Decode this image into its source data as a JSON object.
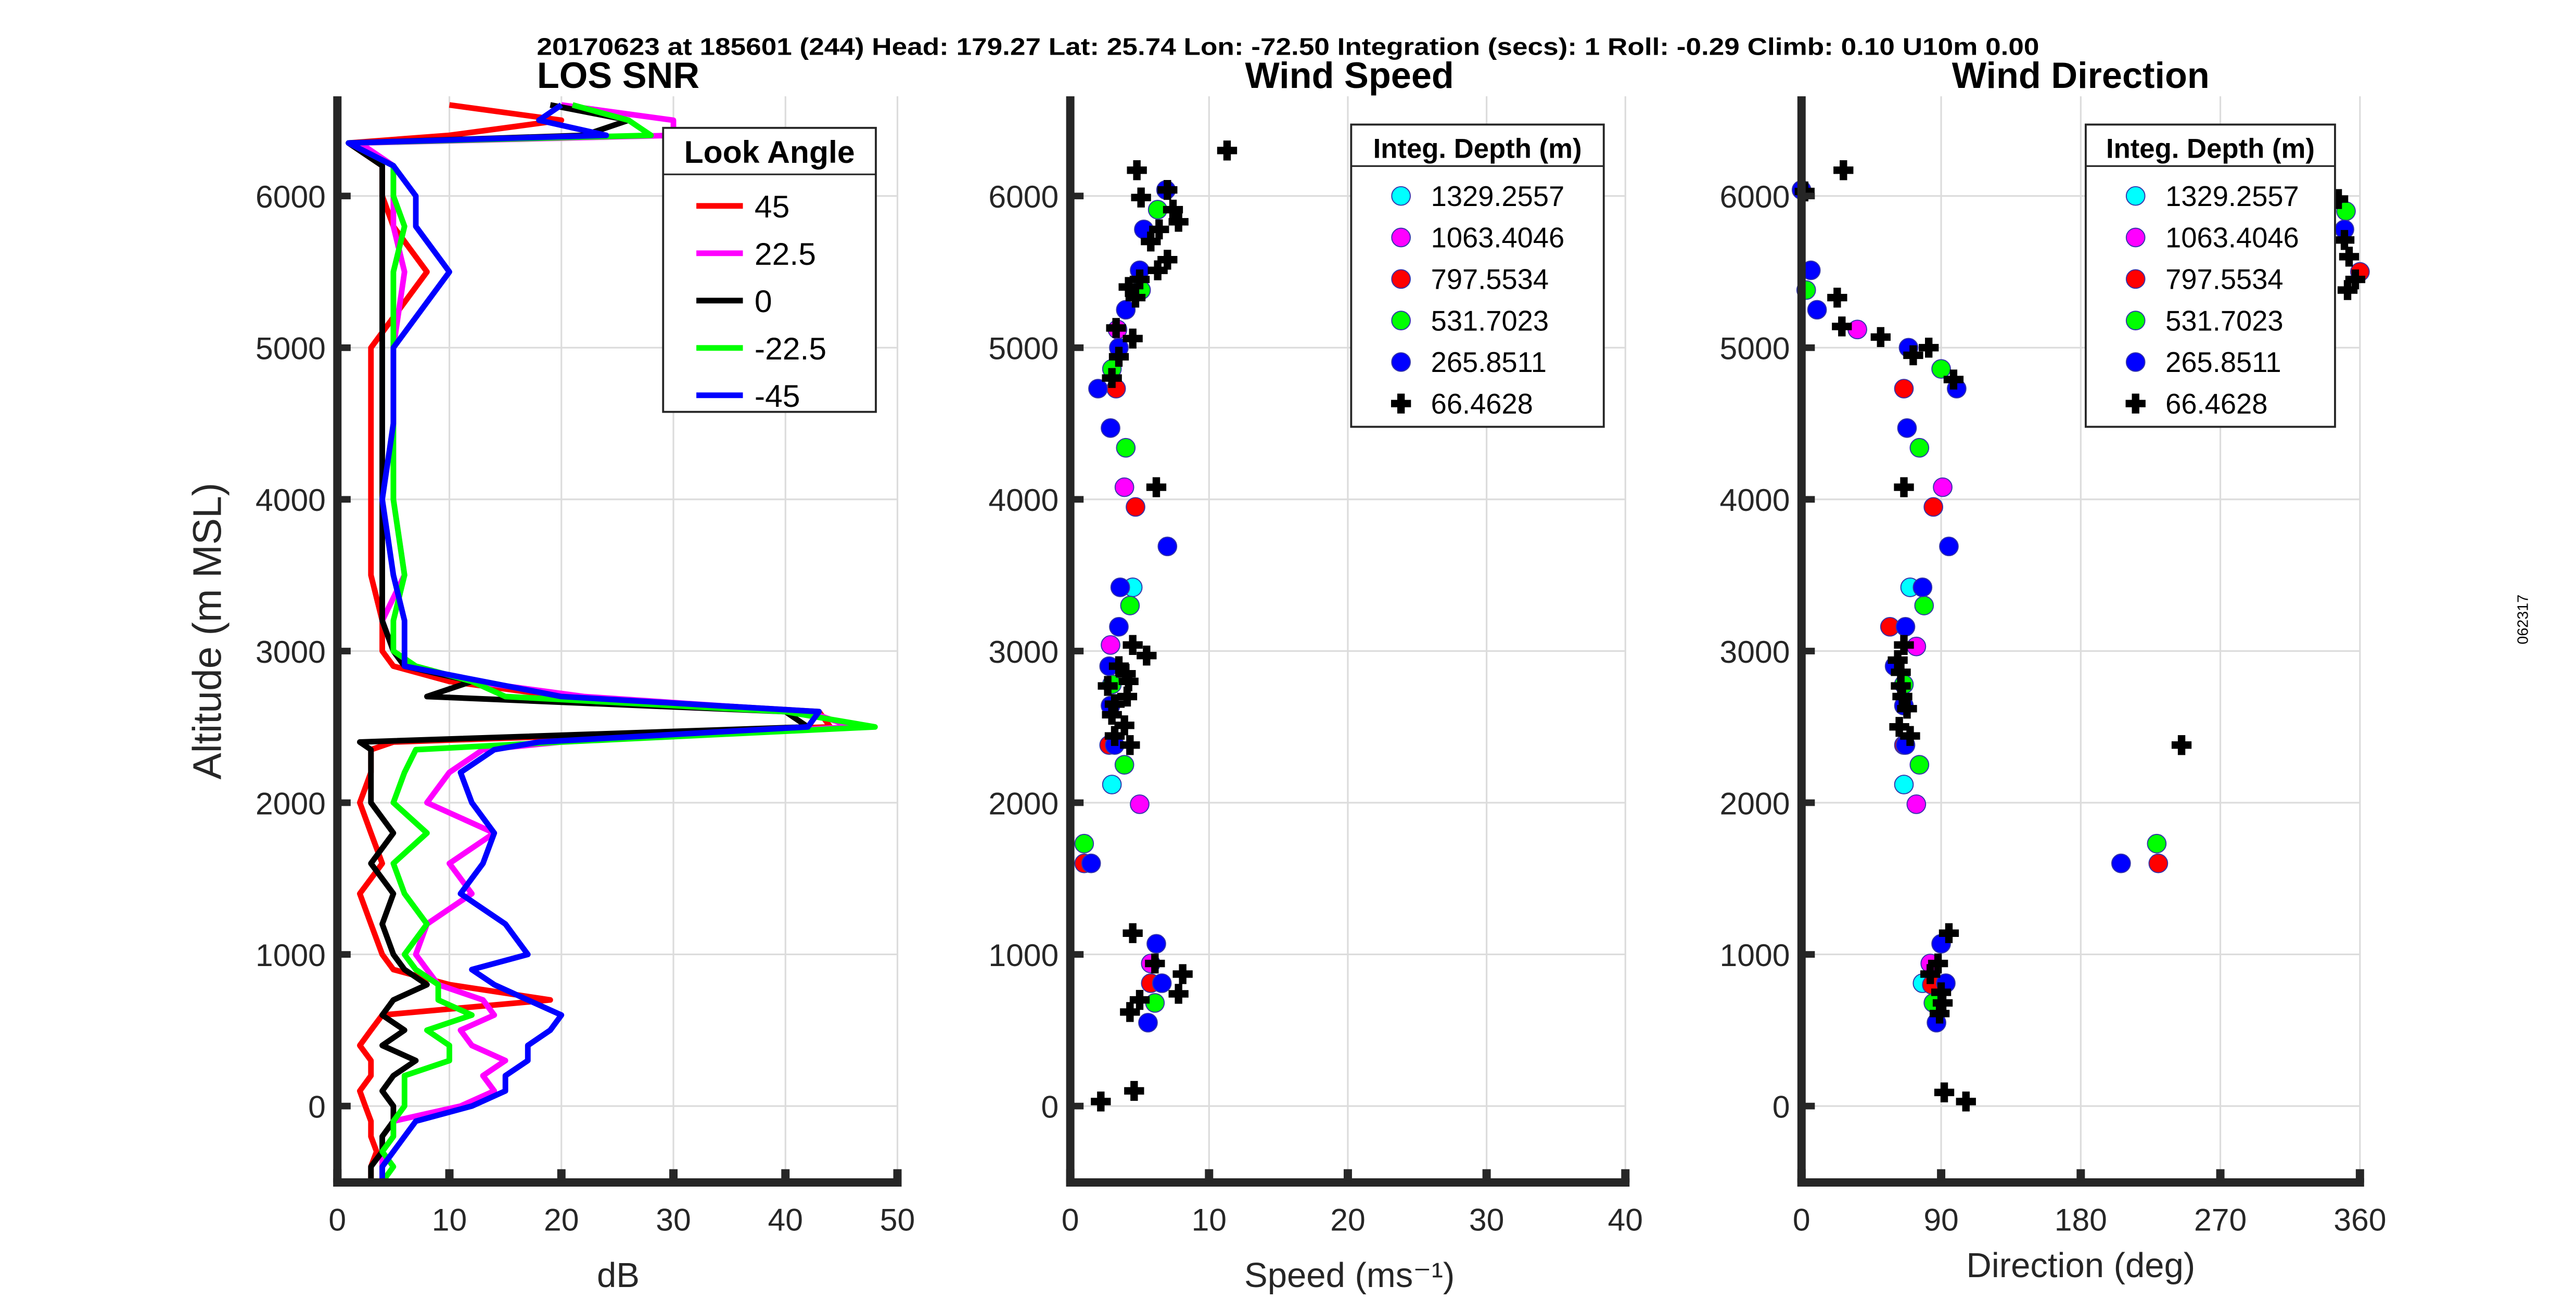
{
  "header": {
    "title": "20170623 at 185601 (244)  Head: 179.27  Lat: 25.74  Lon: -72.50  Integration (secs): 1  Roll: -0.29  Climb: 0.10  U10m 0.00"
  },
  "side_label": "062317",
  "chart_data": [
    {
      "type": "line",
      "title": "LOS SNR",
      "xlabel": "dB",
      "ylabel": "Altitude (m MSL)",
      "xlim": [
        0,
        50
      ],
      "ylim": [
        -500,
        6600
      ],
      "xticks": [
        0,
        10,
        20,
        30,
        40,
        50
      ],
      "yticks": [
        0,
        1000,
        2000,
        3000,
        4000,
        5000,
        6000
      ],
      "grid": true,
      "legend": {
        "title": "Look Angle",
        "placement": "top-right"
      },
      "altitudes": [
        -500,
        -400,
        -300,
        -200,
        -100,
        0,
        100,
        200,
        300,
        400,
        500,
        600,
        700,
        800,
        900,
        1000,
        1200,
        1400,
        1600,
        1800,
        2000,
        2200,
        2350,
        2400,
        2500,
        2600,
        2700,
        2800,
        2900,
        3000,
        3200,
        3500,
        4000,
        4500,
        5000,
        5500,
        5800,
        6000,
        6200,
        6350,
        6400,
        6500,
        6600
      ],
      "series": [
        {
          "name": "45",
          "color": "#ff0000",
          "values": [
            3,
            3,
            3.5,
            3,
            3,
            2.5,
            2,
            3,
            3,
            2,
            3,
            4,
            19,
            10,
            5,
            4,
            3,
            2,
            4,
            3,
            2,
            3,
            3,
            5,
            44,
            43,
            20,
            10,
            5,
            4,
            4,
            3,
            3,
            3,
            3,
            8,
            5,
            4,
            4,
            1,
            10,
            20,
            10
          ]
        },
        {
          "name": "22.5",
          "color": "#ff00ff",
          "values": [
            4,
            4,
            4,
            5,
            5,
            11,
            14,
            13,
            15,
            12,
            11,
            14,
            13,
            9,
            8,
            7,
            8,
            12,
            10,
            14,
            8,
            10,
            13,
            20,
            46,
            42,
            22,
            12,
            6,
            5,
            4,
            6,
            5,
            5,
            5,
            6,
            5,
            5,
            5,
            2,
            30,
            30,
            20
          ]
        },
        {
          "name": "0",
          "color": "#000000",
          "values": [
            3,
            3,
            4,
            4,
            5,
            5,
            4,
            5,
            7,
            4,
            6,
            4,
            5,
            8,
            6,
            5,
            4,
            5,
            3,
            5,
            3,
            3,
            3,
            2,
            42,
            40,
            8,
            12,
            6,
            5,
            4,
            4,
            4,
            4,
            4,
            4,
            4,
            4,
            4,
            1,
            22,
            26,
            19
          ]
        },
        {
          "name": "-22.5",
          "color": "#00ff00",
          "values": [
            4,
            5,
            4,
            5,
            5,
            6,
            6,
            6,
            10,
            10,
            8,
            12,
            9,
            9,
            7,
            6,
            8,
            6,
            5,
            8,
            5,
            6,
            7,
            20,
            48,
            40,
            15,
            12,
            7,
            5,
            5,
            6,
            5,
            5,
            5,
            5,
            6,
            5,
            5,
            1,
            28,
            26,
            21
          ]
        },
        {
          "name": "-45",
          "color": "#0000ff",
          "values": [
            4,
            4,
            5,
            6,
            7,
            12,
            15,
            15,
            17,
            17,
            19,
            20,
            17,
            14,
            12,
            17,
            15,
            11,
            13,
            14,
            12,
            11,
            14,
            18,
            42,
            43,
            20,
            13,
            6,
            6,
            6,
            5,
            4,
            5,
            5,
            10,
            7,
            7,
            5,
            1,
            24,
            18,
            20
          ]
        }
      ]
    },
    {
      "type": "scatter",
      "title": "Wind Speed",
      "xlabel": "Speed (ms⁻¹)",
      "xlim": [
        0,
        40
      ],
      "ylim": [
        -500,
        6600
      ],
      "xticks": [
        0,
        10,
        20,
        30,
        40
      ],
      "yticks": [
        0,
        1000,
        2000,
        3000,
        4000,
        5000,
        6000
      ],
      "grid": true,
      "legend": {
        "title": "Integ. Depth (m)",
        "placement": "top-right"
      },
      "series": [
        {
          "name": "1329.2557",
          "color": "#00ffff",
          "marker": "circle",
          "points": [
            [
              4.5,
              3420
            ],
            [
              3.0,
              2120
            ]
          ]
        },
        {
          "name": "1063.4046",
          "color": "#ff00ff",
          "marker": "circle",
          "points": [
            [
              3.4,
              5120
            ],
            [
              3.9,
              4080
            ],
            [
              2.9,
              3040
            ],
            [
              5.0,
              1990
            ],
            [
              5.8,
              940
            ]
          ]
        },
        {
          "name": "797.5534",
          "color": "#ff0000",
          "marker": "circle",
          "points": [
            [
              3.3,
              4730
            ],
            [
              4.7,
              3950
            ],
            [
              2.8,
              2380
            ],
            [
              1.0,
              1600
            ],
            [
              5.8,
              810
            ]
          ]
        },
        {
          "name": "531.7023",
          "color": "#00ff00",
          "marker": "circle",
          "points": [
            [
              6.3,
              5910
            ],
            [
              5.1,
              5380
            ],
            [
              3.0,
              4860
            ],
            [
              4.0,
              4340
            ],
            [
              4.3,
              3300
            ],
            [
              3.0,
              2780
            ],
            [
              3.9,
              2250
            ],
            [
              1.0,
              1730
            ],
            [
              6.1,
              680
            ]
          ]
        },
        {
          "name": "265.8511",
          "color": "#0000ff",
          "marker": "circle",
          "points": [
            [
              6.9,
              6040
            ],
            [
              5.3,
              5780
            ],
            [
              5.0,
              5510
            ],
            [
              4.0,
              5250
            ],
            [
              3.5,
              5000
            ],
            [
              2.0,
              4730
            ],
            [
              2.9,
              4470
            ],
            [
              7.0,
              3690
            ],
            [
              3.6,
              3420
            ],
            [
              3.5,
              3160
            ],
            [
              2.8,
              2900
            ],
            [
              2.9,
              2640
            ],
            [
              3.2,
              2380
            ],
            [
              1.5,
              1600
            ],
            [
              6.2,
              1070
            ],
            [
              6.6,
              810
            ],
            [
              5.6,
              550
            ]
          ]
        },
        {
          "name": "66.4628",
          "color": "#000000",
          "marker": "plus",
          "points": [
            [
              4.8,
              6170
            ],
            [
              11.3,
              6300
            ],
            [
              5.1,
              5990
            ],
            [
              7.0,
              6040
            ],
            [
              7.4,
              5910
            ],
            [
              7.8,
              5830
            ],
            [
              6.4,
              5780
            ],
            [
              5.8,
              5700
            ],
            [
              7.0,
              5580
            ],
            [
              6.3,
              5510
            ],
            [
              5.0,
              5450
            ],
            [
              4.2,
              5400
            ],
            [
              4.7,
              5330
            ],
            [
              3.3,
              5130
            ],
            [
              4.5,
              5060
            ],
            [
              3.5,
              4940
            ],
            [
              3.0,
              4800
            ],
            [
              6.2,
              4080
            ],
            [
              4.5,
              3040
            ],
            [
              5.5,
              2970
            ],
            [
              3.5,
              2900
            ],
            [
              4.0,
              2850
            ],
            [
              4.2,
              2800
            ],
            [
              2.7,
              2770
            ],
            [
              4.1,
              2700
            ],
            [
              3.2,
              2650
            ],
            [
              3.0,
              2580
            ],
            [
              3.9,
              2510
            ],
            [
              3.2,
              2440
            ],
            [
              4.3,
              2380
            ],
            [
              4.5,
              1140
            ],
            [
              6.1,
              940
            ],
            [
              8.1,
              870
            ],
            [
              5.0,
              700
            ],
            [
              4.3,
              620
            ],
            [
              7.8,
              740
            ],
            [
              2.2,
              30
            ],
            [
              4.6,
              100
            ]
          ]
        }
      ]
    },
    {
      "type": "scatter",
      "title": "Wind Direction",
      "xlabel": "Direction (deg)",
      "xlim": [
        0,
        360
      ],
      "ylim": [
        -500,
        6600
      ],
      "xticks": [
        0,
        90,
        180,
        270,
        360
      ],
      "yticks": [
        0,
        1000,
        2000,
        3000,
        4000,
        5000,
        6000
      ],
      "grid": true,
      "legend": {
        "title": "Integ. Depth (m)",
        "placement": "top-right"
      },
      "series": [
        {
          "name": "1329.2557",
          "color": "#00ffff",
          "marker": "circle",
          "points": [
            [
              70,
              3420
            ],
            [
              66,
              2120
            ],
            [
              78,
              810
            ]
          ]
        },
        {
          "name": "1063.4046",
          "color": "#ff00ff",
          "marker": "circle",
          "points": [
            [
              36,
              5120
            ],
            [
              91,
              4080
            ],
            [
              74,
              3030
            ],
            [
              74,
              1990
            ],
            [
              83,
              940
            ]
          ]
        },
        {
          "name": "797.5534",
          "color": "#ff0000",
          "marker": "circle",
          "points": [
            [
              66,
              4730
            ],
            [
              85,
              3950
            ],
            [
              57,
              3160
            ],
            [
              66,
              2380
            ],
            [
              230,
              1600
            ],
            [
              84,
              800
            ],
            [
              360,
              5500
            ]
          ]
        },
        {
          "name": "531.7023",
          "color": "#00ff00",
          "marker": "circle",
          "points": [
            [
              3,
              5380
            ],
            [
              351,
              5900
            ],
            [
              90,
              4860
            ],
            [
              76,
              4340
            ],
            [
              79,
              3300
            ],
            [
              66,
              2780
            ],
            [
              76,
              2250
            ],
            [
              229,
              1730
            ],
            [
              85,
              680
            ]
          ]
        },
        {
          "name": "265.8511",
          "color": "#0000ff",
          "marker": "circle",
          "points": [
            [
              0,
              6040
            ],
            [
              6,
              5510
            ],
            [
              10,
              5250
            ],
            [
              69,
              5000
            ],
            [
              100,
              4730
            ],
            [
              68,
              4470
            ],
            [
              95,
              3690
            ],
            [
              78,
              3420
            ],
            [
              67,
              3160
            ],
            [
              60,
              2900
            ],
            [
              66,
              2640
            ],
            [
              67,
              2380
            ],
            [
              206,
              1600
            ],
            [
              90,
              1070
            ],
            [
              93,
              810
            ],
            [
              87,
              550
            ],
            [
              350,
              5780
            ]
          ]
        },
        {
          "name": "66.4628",
          "color": "#000000",
          "marker": "plus",
          "points": [
            [
              2,
              6030
            ],
            [
              27,
              6170
            ],
            [
              23,
              5330
            ],
            [
              26,
              5140
            ],
            [
              51,
              5070
            ],
            [
              72,
              4950
            ],
            [
              82,
              5000
            ],
            [
              98,
              4790
            ],
            [
              66,
              4080
            ],
            [
              346,
              5980
            ],
            [
              350,
              5710
            ],
            [
              353,
              5600
            ],
            [
              357,
              5450
            ],
            [
              352,
              5380
            ],
            [
              66,
              3040
            ],
            [
              62,
              2940
            ],
            [
              64,
              2860
            ],
            [
              64,
              2770
            ],
            [
              65,
              2700
            ],
            [
              68,
              2620
            ],
            [
              63,
              2500
            ],
            [
              70,
              2440
            ],
            [
              245,
              2380
            ],
            [
              95,
              1140
            ],
            [
              88,
              940
            ],
            [
              83,
              870
            ],
            [
              90,
              750
            ],
            [
              91,
              680
            ],
            [
              89,
              610
            ],
            [
              92,
              90
            ],
            [
              106,
              30
            ]
          ]
        }
      ]
    }
  ]
}
